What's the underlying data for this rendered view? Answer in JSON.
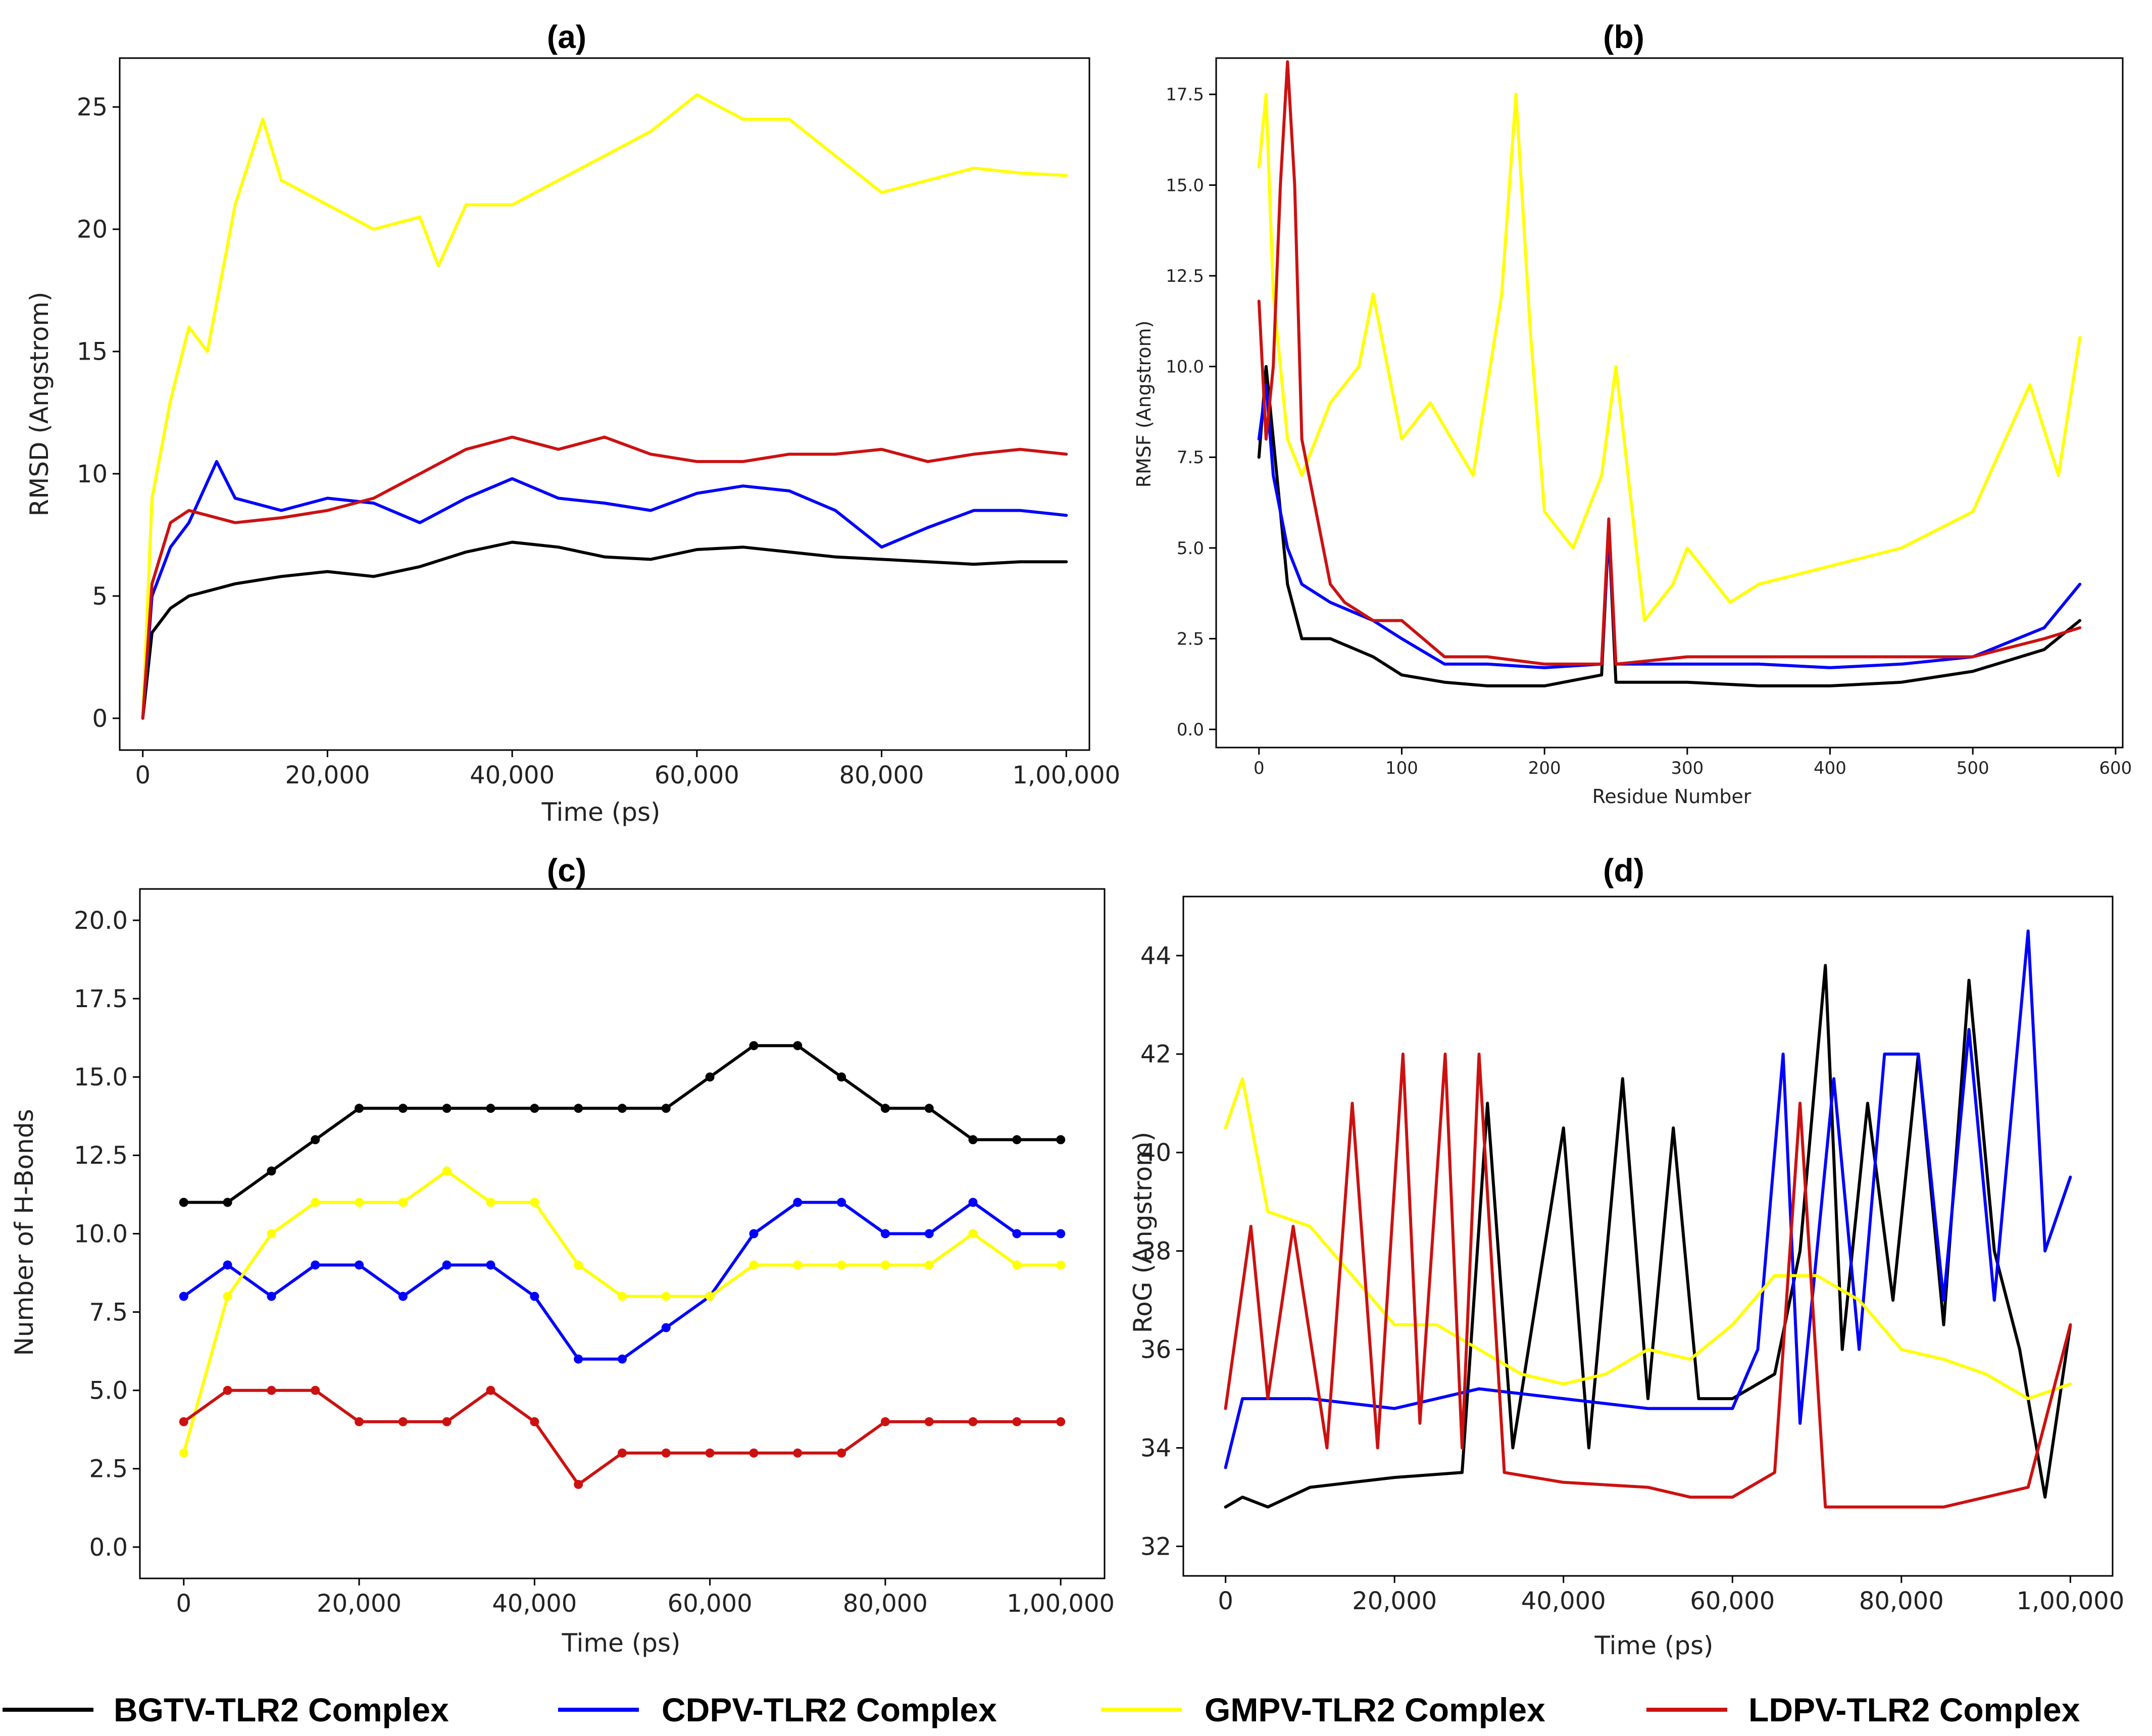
{
  "legend": [
    {
      "label": "BGTV-TLR2 Complex",
      "color": "#000000"
    },
    {
      "label": "CDPV-TLR2 Complex",
      "color": "#0000ff"
    },
    {
      "label": "GMPV-TLR2 Complex",
      "color": "#ffff00"
    },
    {
      "label": "LDPV-TLR2 Complex",
      "color": "#cc1111"
    }
  ],
  "chart_data": [
    {
      "panel": "(a)",
      "type": "line",
      "title": "(a)",
      "xlabel": "Time (ps)",
      "ylabel": "RMSD  (Angstrom)",
      "xlim": [
        -2500,
        102500
      ],
      "ylim": [
        -1.3,
        27
      ],
      "xticks": [
        0,
        20000,
        40000,
        60000,
        80000,
        100000
      ],
      "xtick_labels": [
        "0",
        "20,000",
        "40,000",
        "60,000",
        "80,000",
        "1,00,000"
      ],
      "yticks": [
        0,
        5,
        10,
        15,
        20,
        25
      ],
      "ytick_labels": [
        "0",
        "5",
        "10",
        "15",
        "20",
        "25"
      ],
      "series": [
        {
          "name": "BGTV-TLR2 Complex",
          "color": "#000000",
          "x": [
            0,
            1000,
            3000,
            5000,
            10000,
            15000,
            20000,
            25000,
            30000,
            35000,
            40000,
            45000,
            50000,
            55000,
            60000,
            65000,
            70000,
            75000,
            80000,
            85000,
            90000,
            95000,
            100000
          ],
          "y": [
            0,
            3.5,
            4.5,
            5.0,
            5.5,
            5.8,
            6.0,
            5.8,
            6.2,
            6.8,
            7.2,
            7.0,
            6.6,
            6.5,
            6.9,
            7.0,
            6.8,
            6.6,
            6.5,
            6.4,
            6.3,
            6.4,
            6.4
          ]
        },
        {
          "name": "CDPV-TLR2 Complex",
          "color": "#0000ff",
          "x": [
            0,
            1000,
            3000,
            5000,
            8000,
            10000,
            15000,
            20000,
            25000,
            30000,
            35000,
            40000,
            45000,
            50000,
            55000,
            60000,
            65000,
            70000,
            75000,
            80000,
            85000,
            90000,
            95000,
            100000
          ],
          "y": [
            0,
            5.0,
            7.0,
            8.0,
            10.5,
            9.0,
            8.5,
            9.0,
            8.8,
            8.0,
            9.0,
            9.8,
            9.0,
            8.8,
            8.5,
            9.2,
            9.5,
            9.3,
            8.5,
            7.0,
            7.8,
            8.5,
            8.5,
            8.3
          ]
        },
        {
          "name": "GMPV-TLR2 Complex",
          "color": "#ffff00",
          "x": [
            0,
            1000,
            3000,
            5000,
            7000,
            10000,
            13000,
            15000,
            20000,
            25000,
            30000,
            32000,
            35000,
            40000,
            45000,
            50000,
            55000,
            60000,
            65000,
            70000,
            75000,
            80000,
            85000,
            90000,
            95000,
            100000
          ],
          "y": [
            0,
            9,
            13,
            16,
            15,
            21,
            24.5,
            22,
            21,
            20,
            20.5,
            18.5,
            21,
            21,
            22,
            23,
            24,
            25.5,
            24.5,
            24.5,
            23,
            21.5,
            22,
            22.5,
            22.3,
            22.2
          ]
        },
        {
          "name": "LDPV-TLR2 Complex",
          "color": "#cc1111",
          "x": [
            0,
            1000,
            3000,
            5000,
            10000,
            15000,
            20000,
            25000,
            30000,
            35000,
            40000,
            45000,
            50000,
            55000,
            60000,
            65000,
            70000,
            75000,
            80000,
            85000,
            90000,
            95000,
            100000
          ],
          "y": [
            0,
            5.5,
            8.0,
            8.5,
            8.0,
            8.2,
            8.5,
            9.0,
            10.0,
            11.0,
            11.5,
            11.0,
            11.5,
            10.8,
            10.5,
            10.5,
            10.8,
            10.8,
            11.0,
            10.5,
            10.8,
            11.0,
            10.8
          ]
        }
      ]
    },
    {
      "panel": "(b)",
      "type": "line",
      "title": "(b)",
      "xlabel": "Residue Number",
      "ylabel": "RMSF (Angstrom)",
      "xlim": [
        -30,
        605
      ],
      "ylim": [
        -0.5,
        18.5
      ],
      "xticks": [
        0,
        100,
        200,
        300,
        400,
        500,
        600
      ],
      "xtick_labels": [
        "0",
        "100",
        "200",
        "300",
        "400",
        "500",
        "600"
      ],
      "yticks": [
        0,
        2.5,
        5,
        7.5,
        10,
        12.5,
        15,
        17.5
      ],
      "ytick_labels": [
        "0.0",
        "2.5",
        "5.0",
        "7.5",
        "10.0",
        "12.5",
        "15.0",
        "17.5"
      ],
      "series": [
        {
          "name": "BGTV-TLR2 Complex",
          "color": "#000000",
          "x": [
            0,
            5,
            10,
            20,
            30,
            50,
            80,
            100,
            130,
            160,
            200,
            240,
            245,
            250,
            300,
            350,
            400,
            450,
            500,
            550,
            575
          ],
          "y": [
            7.5,
            10,
            8,
            4,
            2.5,
            2.5,
            2.0,
            1.5,
            1.3,
            1.2,
            1.2,
            1.5,
            5.5,
            1.3,
            1.3,
            1.2,
            1.2,
            1.3,
            1.6,
            2.2,
            3.0
          ]
        },
        {
          "name": "CDPV-TLR2 Complex",
          "color": "#0000ff",
          "x": [
            0,
            5,
            10,
            20,
            30,
            50,
            80,
            100,
            130,
            160,
            200,
            240,
            245,
            250,
            300,
            350,
            400,
            450,
            500,
            550,
            575
          ],
          "y": [
            8.0,
            9.5,
            7,
            5,
            4,
            3.5,
            3.0,
            2.5,
            1.8,
            1.8,
            1.7,
            1.8,
            5.5,
            1.8,
            1.8,
            1.8,
            1.7,
            1.8,
            2.0,
            2.8,
            4.0
          ]
        },
        {
          "name": "GMPV-TLR2 Complex",
          "color": "#ffff00",
          "x": [
            0,
            5,
            10,
            20,
            30,
            50,
            70,
            80,
            100,
            120,
            150,
            170,
            180,
            190,
            200,
            220,
            240,
            250,
            270,
            290,
            300,
            330,
            350,
            400,
            450,
            500,
            540,
            560,
            575
          ],
          "y": [
            15.5,
            17.5,
            12,
            8,
            7,
            9,
            10,
            12,
            8,
            9,
            7,
            12,
            17.5,
            11,
            6,
            5,
            7,
            10,
            3,
            4,
            5,
            3.5,
            4,
            4.5,
            5,
            6,
            9.5,
            7,
            10.8
          ]
        },
        {
          "name": "LDPV-TLR2 Complex",
          "color": "#cc1111",
          "x": [
            0,
            5,
            10,
            15,
            20,
            25,
            30,
            40,
            50,
            60,
            80,
            100,
            130,
            160,
            200,
            240,
            245,
            250,
            300,
            350,
            400,
            450,
            500,
            550,
            575
          ],
          "y": [
            11.8,
            8,
            10,
            15,
            18.4,
            15,
            8,
            6,
            4,
            3.5,
            3.0,
            3.0,
            2.0,
            2.0,
            1.8,
            1.8,
            5.8,
            1.8,
            2.0,
            2.0,
            2.0,
            2.0,
            2.0,
            2.5,
            2.8
          ]
        }
      ]
    },
    {
      "panel": "(c)",
      "type": "line",
      "title": "(c)",
      "xlabel": "Time (ps)",
      "ylabel": "Number of H-Bonds",
      "xlim": [
        -5000,
        105000
      ],
      "ylim": [
        -1.0,
        21.0
      ],
      "xticks": [
        0,
        20000,
        40000,
        60000,
        80000,
        100000
      ],
      "xtick_labels": [
        "0",
        "20,000",
        "40,000",
        "60,000",
        "80,000",
        "1,00,000"
      ],
      "yticks": [
        0,
        2.5,
        5,
        7.5,
        10,
        12.5,
        15,
        17.5,
        20
      ],
      "ytick_labels": [
        "0.0",
        "2.5",
        "5.0",
        "7.5",
        "10.0",
        "12.5",
        "15.0",
        "17.5",
        "20.0"
      ],
      "series": [
        {
          "name": "BGTV-TLR2 Complex",
          "color": "#000000",
          "x": [
            0,
            5000,
            10000,
            15000,
            20000,
            25000,
            30000,
            35000,
            40000,
            45000,
            50000,
            55000,
            60000,
            65000,
            70000,
            75000,
            80000,
            85000,
            90000,
            95000,
            100000
          ],
          "y": [
            11,
            11,
            12,
            13,
            14,
            14,
            14,
            14,
            14,
            14,
            14,
            14,
            15,
            16,
            16,
            15,
            14,
            14,
            13,
            13,
            13
          ]
        },
        {
          "name": "CDPV-TLR2 Complex",
          "color": "#0000ff",
          "x": [
            0,
            5000,
            10000,
            15000,
            20000,
            25000,
            30000,
            35000,
            40000,
            45000,
            50000,
            55000,
            60000,
            65000,
            70000,
            75000,
            80000,
            85000,
            90000,
            95000,
            100000
          ],
          "y": [
            8,
            9,
            8,
            9,
            9,
            8,
            9,
            9,
            8,
            6,
            6,
            7,
            8,
            10,
            11,
            11,
            10,
            10,
            11,
            10,
            10
          ]
        },
        {
          "name": "GMPV-TLR2 Complex",
          "color": "#ffff00",
          "x": [
            0,
            5000,
            10000,
            15000,
            20000,
            25000,
            30000,
            35000,
            40000,
            45000,
            50000,
            55000,
            60000,
            65000,
            70000,
            75000,
            80000,
            85000,
            90000,
            95000,
            100000
          ],
          "y": [
            3,
            8,
            10,
            11,
            11,
            11,
            12,
            11,
            11,
            9,
            8,
            8,
            8,
            9,
            9,
            9,
            9,
            9,
            10,
            9,
            9
          ]
        },
        {
          "name": "LDPV-TLR2 Complex",
          "color": "#cc1111",
          "x": [
            0,
            5000,
            10000,
            15000,
            20000,
            25000,
            30000,
            35000,
            40000,
            45000,
            50000,
            55000,
            60000,
            65000,
            70000,
            75000,
            80000,
            85000,
            90000,
            95000,
            100000
          ],
          "y": [
            4,
            5,
            5,
            5,
            4,
            4,
            4,
            5,
            4,
            2,
            3,
            3,
            3,
            3,
            3,
            3,
            4,
            4,
            4,
            4,
            4
          ]
        }
      ]
    },
    {
      "panel": "(d)",
      "type": "line",
      "title": "(d)",
      "xlabel": "Time (ps)",
      "ylabel": "RoG (Angstrom)",
      "xlim": [
        -5000,
        105000
      ],
      "ylim": [
        31.4,
        45.2
      ],
      "xticks": [
        0,
        20000,
        40000,
        60000,
        80000,
        100000
      ],
      "xtick_labels": [
        "0",
        "20,000",
        "40,000",
        "60,000",
        "80,000",
        "1,00,000"
      ],
      "yticks": [
        32,
        34,
        36,
        38,
        40,
        42,
        44
      ],
      "ytick_labels": [
        "32",
        "34",
        "36",
        "38",
        "40",
        "42",
        "44"
      ],
      "series": [
        {
          "name": "BGTV-TLR2 Complex",
          "color": "#000000",
          "x": [
            0,
            2000,
            5000,
            10000,
            20000,
            28000,
            31000,
            34000,
            40000,
            43000,
            47000,
            50000,
            53000,
            56000,
            60000,
            65000,
            68000,
            71000,
            73000,
            76000,
            79000,
            82000,
            85000,
            88000,
            91000,
            94000,
            97000,
            100000
          ],
          "y": [
            32.8,
            33.0,
            32.8,
            33.2,
            33.4,
            33.5,
            41.0,
            34.0,
            40.5,
            34.0,
            41.5,
            35.0,
            40.5,
            35.0,
            35.0,
            35.5,
            38.0,
            43.8,
            36.0,
            41.0,
            37.0,
            42.0,
            36.5,
            43.5,
            38.0,
            36.0,
            33.0,
            36.5
          ]
        },
        {
          "name": "CDPV-TLR2 Complex",
          "color": "#0000ff",
          "x": [
            0,
            2000,
            5000,
            10000,
            20000,
            30000,
            40000,
            50000,
            60000,
            63000,
            66000,
            68000,
            72000,
            75000,
            78000,
            82000,
            85000,
            88000,
            91000,
            95000,
            97000,
            100000
          ],
          "y": [
            33.6,
            35.0,
            35.0,
            35.0,
            34.8,
            35.2,
            35.0,
            34.8,
            34.8,
            36.0,
            42.0,
            34.5,
            41.5,
            36.0,
            42.0,
            42.0,
            37.0,
            42.5,
            37.0,
            44.5,
            38.0,
            39.5
          ]
        },
        {
          "name": "GMPV-TLR2 Complex",
          "color": "#ffff00",
          "x": [
            0,
            2000,
            5000,
            10000,
            15000,
            20000,
            25000,
            30000,
            35000,
            40000,
            45000,
            50000,
            55000,
            60000,
            65000,
            70000,
            75000,
            80000,
            85000,
            90000,
            95000,
            100000
          ],
          "y": [
            40.5,
            41.5,
            38.8,
            38.5,
            37.5,
            36.5,
            36.5,
            36.0,
            35.5,
            35.3,
            35.5,
            36.0,
            35.8,
            36.5,
            37.5,
            37.5,
            37.0,
            36.0,
            35.8,
            35.5,
            35.0,
            35.3
          ]
        },
        {
          "name": "LDPV-TLR2 Complex",
          "color": "#cc1111",
          "x": [
            0,
            3000,
            5000,
            8000,
            12000,
            15000,
            18000,
            21000,
            23000,
            26000,
            28000,
            30000,
            33000,
            40000,
            50000,
            55000,
            60000,
            65000,
            68000,
            71000,
            75000,
            80000,
            85000,
            90000,
            95000,
            100000
          ],
          "y": [
            34.8,
            38.5,
            35.0,
            38.5,
            34.0,
            41.0,
            34.0,
            42.0,
            34.5,
            42.0,
            34.0,
            42.0,
            33.5,
            33.3,
            33.2,
            33.0,
            33.0,
            33.5,
            41.0,
            32.8,
            32.8,
            32.8,
            32.8,
            33.0,
            33.2,
            36.5
          ]
        }
      ]
    }
  ]
}
